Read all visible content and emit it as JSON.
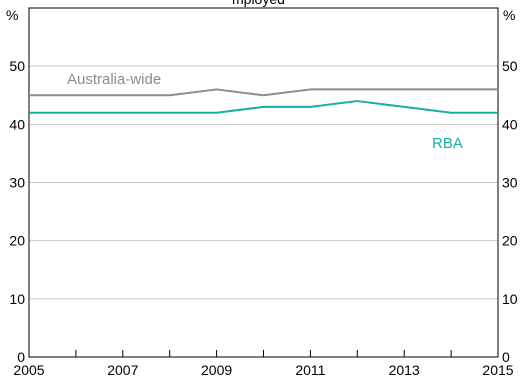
{
  "chart_data": {
    "type": "line",
    "title_visible_fragment": "mployed",
    "y_unit_left": "%",
    "y_unit_right": "%",
    "ylim": [
      0,
      60
    ],
    "y_ticks": [
      0,
      10,
      20,
      30,
      40,
      50
    ],
    "y_tick_labels_left": [
      "0",
      "10",
      "20",
      "30",
      "40",
      "50"
    ],
    "y_tick_labels_right": [
      "0",
      "10",
      "20",
      "30",
      "40",
      "50"
    ],
    "xlim": [
      2005,
      2015
    ],
    "x_tick_labels": [
      "2005",
      "2007",
      "2009",
      "2011",
      "2013",
      "2015"
    ],
    "grid": "horizontal",
    "x": [
      2005,
      2006,
      2007,
      2008,
      2009,
      2010,
      2011,
      2012,
      2013,
      2014,
      2015
    ],
    "series": [
      {
        "name": "Australia-wide",
        "color": "#8c8c8c",
        "values": [
          45,
          45,
          45,
          45,
          46,
          45,
          46,
          46,
          46,
          46,
          46
        ]
      },
      {
        "name": "RBA",
        "color": "#1aada5",
        "values": [
          42,
          42,
          42,
          42,
          42,
          43,
          43,
          44,
          43,
          42,
          42
        ]
      }
    ]
  }
}
